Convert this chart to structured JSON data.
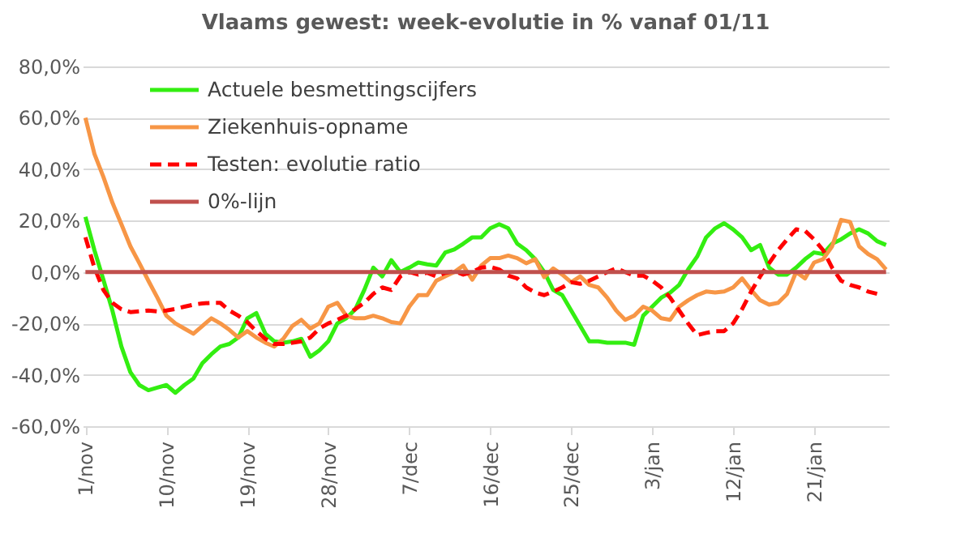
{
  "chart_data": {
    "type": "line",
    "title": "Vlaams gewest: week-evolutie in %  vanaf 01/11",
    "categories": [
      "1/nov",
      null,
      null,
      null,
      null,
      null,
      null,
      null,
      null,
      "10/nov",
      null,
      null,
      null,
      null,
      null,
      null,
      null,
      null,
      "19/nov",
      null,
      null,
      null,
      null,
      null,
      null,
      null,
      null,
      "28/nov",
      null,
      null,
      null,
      null,
      null,
      null,
      null,
      null,
      "7/dec",
      null,
      null,
      null,
      null,
      null,
      null,
      null,
      null,
      "16/dec",
      null,
      null,
      null,
      null,
      null,
      null,
      null,
      null,
      "25/dec",
      null,
      null,
      null,
      null,
      null,
      null,
      null,
      null,
      "3/jan",
      null,
      null,
      null,
      null,
      null,
      null,
      null,
      null,
      "12/jan",
      null,
      null,
      null,
      null,
      null,
      null,
      null,
      null,
      "21/jan",
      null,
      null,
      null,
      null,
      null,
      null,
      null,
      null
    ],
    "series": [
      {
        "name": "Actuele besmettingscijfers",
        "color": "#33ee11",
        "values": [
          21.5,
          8.5,
          -3,
          -15,
          -29,
          -39,
          -44,
          -46,
          -45,
          -44,
          -47,
          -44,
          -41.5,
          -35.5,
          -32,
          -29,
          -28,
          -25.5,
          -18,
          -16,
          -24,
          -27,
          -27.5,
          -27,
          -26,
          -33,
          -30.5,
          -27,
          -20,
          -18,
          -14.5,
          -7,
          1.7,
          -1.7,
          4.6,
          0,
          1.7,
          3.7,
          3,
          2.5,
          7.6,
          8.8,
          11,
          13.5,
          13.5,
          17,
          18.6,
          17,
          11,
          8.5,
          5,
          0,
          -7,
          -9,
          -15,
          -21,
          -27,
          -27,
          -27.5,
          -27.5,
          -27.5,
          -28.3,
          -17,
          -13.5,
          -10,
          -8,
          -5,
          1,
          6,
          13.5,
          17,
          19,
          16.6,
          13.5,
          8.5,
          10.5,
          1.7,
          -1,
          -1,
          1.7,
          5,
          7.6,
          7,
          11,
          12.7,
          15,
          16.6,
          15,
          12,
          10.5
        ]
      },
      {
        "name": "Ziekenhuis-opname",
        "color": "#f79646",
        "values": [
          60,
          46,
          37,
          27,
          18.6,
          10,
          3.4,
          -3.4,
          -10,
          -17,
          -20,
          -22,
          -24,
          -21,
          -18,
          -20,
          -22.5,
          -25.5,
          -23,
          -25.5,
          -27.5,
          -29,
          -26,
          -21,
          -18.6,
          -22,
          -20,
          -13.5,
          -12,
          -17,
          -18,
          -18,
          -17,
          -18,
          -19.5,
          -20,
          -13.5,
          -9,
          -9,
          -3.4,
          -1.7,
          0,
          2.5,
          -3,
          2.5,
          5.4,
          5.4,
          6.4,
          5.4,
          3.4,
          5,
          -2,
          1.4,
          -1,
          -4,
          -1.7,
          -5,
          -6,
          -10,
          -15,
          -18.6,
          -17,
          -13.5,
          -15,
          -18,
          -18.6,
          -13.5,
          -11,
          -9,
          -7.6,
          -8,
          -7.6,
          -6,
          -2.5,
          -7,
          -11,
          -12.7,
          -12,
          -8.5,
          0,
          -2.5,
          3.7,
          5,
          10,
          20.3,
          19.5,
          10,
          7,
          5,
          1
        ]
      },
      {
        "name": "Testen: evolutie ratio",
        "color": "#ff0000",
        "line_style": "dashed",
        "values": [
          13.5,
          1.7,
          -7,
          -12,
          -14.5,
          -15.6,
          -15.3,
          -15,
          -15.3,
          -15,
          -14.4,
          -13.5,
          -12.7,
          -12.2,
          -12,
          -12,
          -15,
          -17,
          -19.5,
          -23,
          -26,
          -28,
          -28,
          -27.5,
          -27,
          -25.5,
          -22,
          -20,
          -18.6,
          -17,
          -14.4,
          -12,
          -8.5,
          -6,
          -7,
          -1.7,
          0,
          -1,
          -0.3,
          -1.7,
          -0.3,
          0.3,
          -1,
          0,
          1.7,
          2,
          1,
          -1.4,
          -2.5,
          -6,
          -8,
          -9,
          -7.6,
          -6,
          -4,
          -4.6,
          -3.4,
          -1.7,
          0,
          1.4,
          0,
          -1.4,
          -1.4,
          -3.4,
          -6,
          -10,
          -15,
          -20,
          -24.6,
          -23.7,
          -23,
          -23,
          -20,
          -14.4,
          -7.6,
          -1.7,
          3.4,
          8.5,
          12.7,
          16.6,
          16,
          12.7,
          8.5,
          1.7,
          -3.4,
          -5,
          -6,
          -7.6,
          -8.5,
          null
        ]
      },
      {
        "name": "0%-lijn",
        "color": "#c0504d",
        "values": [
          0,
          0,
          0,
          0,
          0,
          0,
          0,
          0,
          0,
          0,
          0,
          0,
          0,
          0,
          0,
          0,
          0,
          0,
          0,
          0,
          0,
          0,
          0,
          0,
          0,
          0,
          0,
          0,
          0,
          0,
          0,
          0,
          0,
          0,
          0,
          0,
          0,
          0,
          0,
          0,
          0,
          0,
          0,
          0,
          0,
          0,
          0,
          0,
          0,
          0,
          0,
          0,
          0,
          0,
          0,
          0,
          0,
          0,
          0,
          0,
          0,
          0,
          0,
          0,
          0,
          0,
          0,
          0,
          0,
          0,
          0,
          0,
          0,
          0,
          0,
          0,
          0,
          0,
          0,
          0,
          0,
          0,
          0,
          0,
          0,
          0,
          0,
          0,
          0,
          0
        ]
      }
    ],
    "ylim": [
      -60,
      80
    ],
    "yticks": [
      {
        "value": -60,
        "label": "-60,0%"
      },
      {
        "value": -40,
        "label": "-40,0%"
      },
      {
        "value": -20,
        "label": "-20,0%"
      },
      {
        "value": 0,
        "label": "0,0%"
      },
      {
        "value": 20,
        "label": "20,0%"
      },
      {
        "value": 40,
        "label": "40,0%"
      },
      {
        "value": 60,
        "label": "60,0%"
      },
      {
        "value": 80,
        "label": "80,0%"
      }
    ],
    "grid": "y",
    "legend": "top left",
    "marker": "none"
  }
}
